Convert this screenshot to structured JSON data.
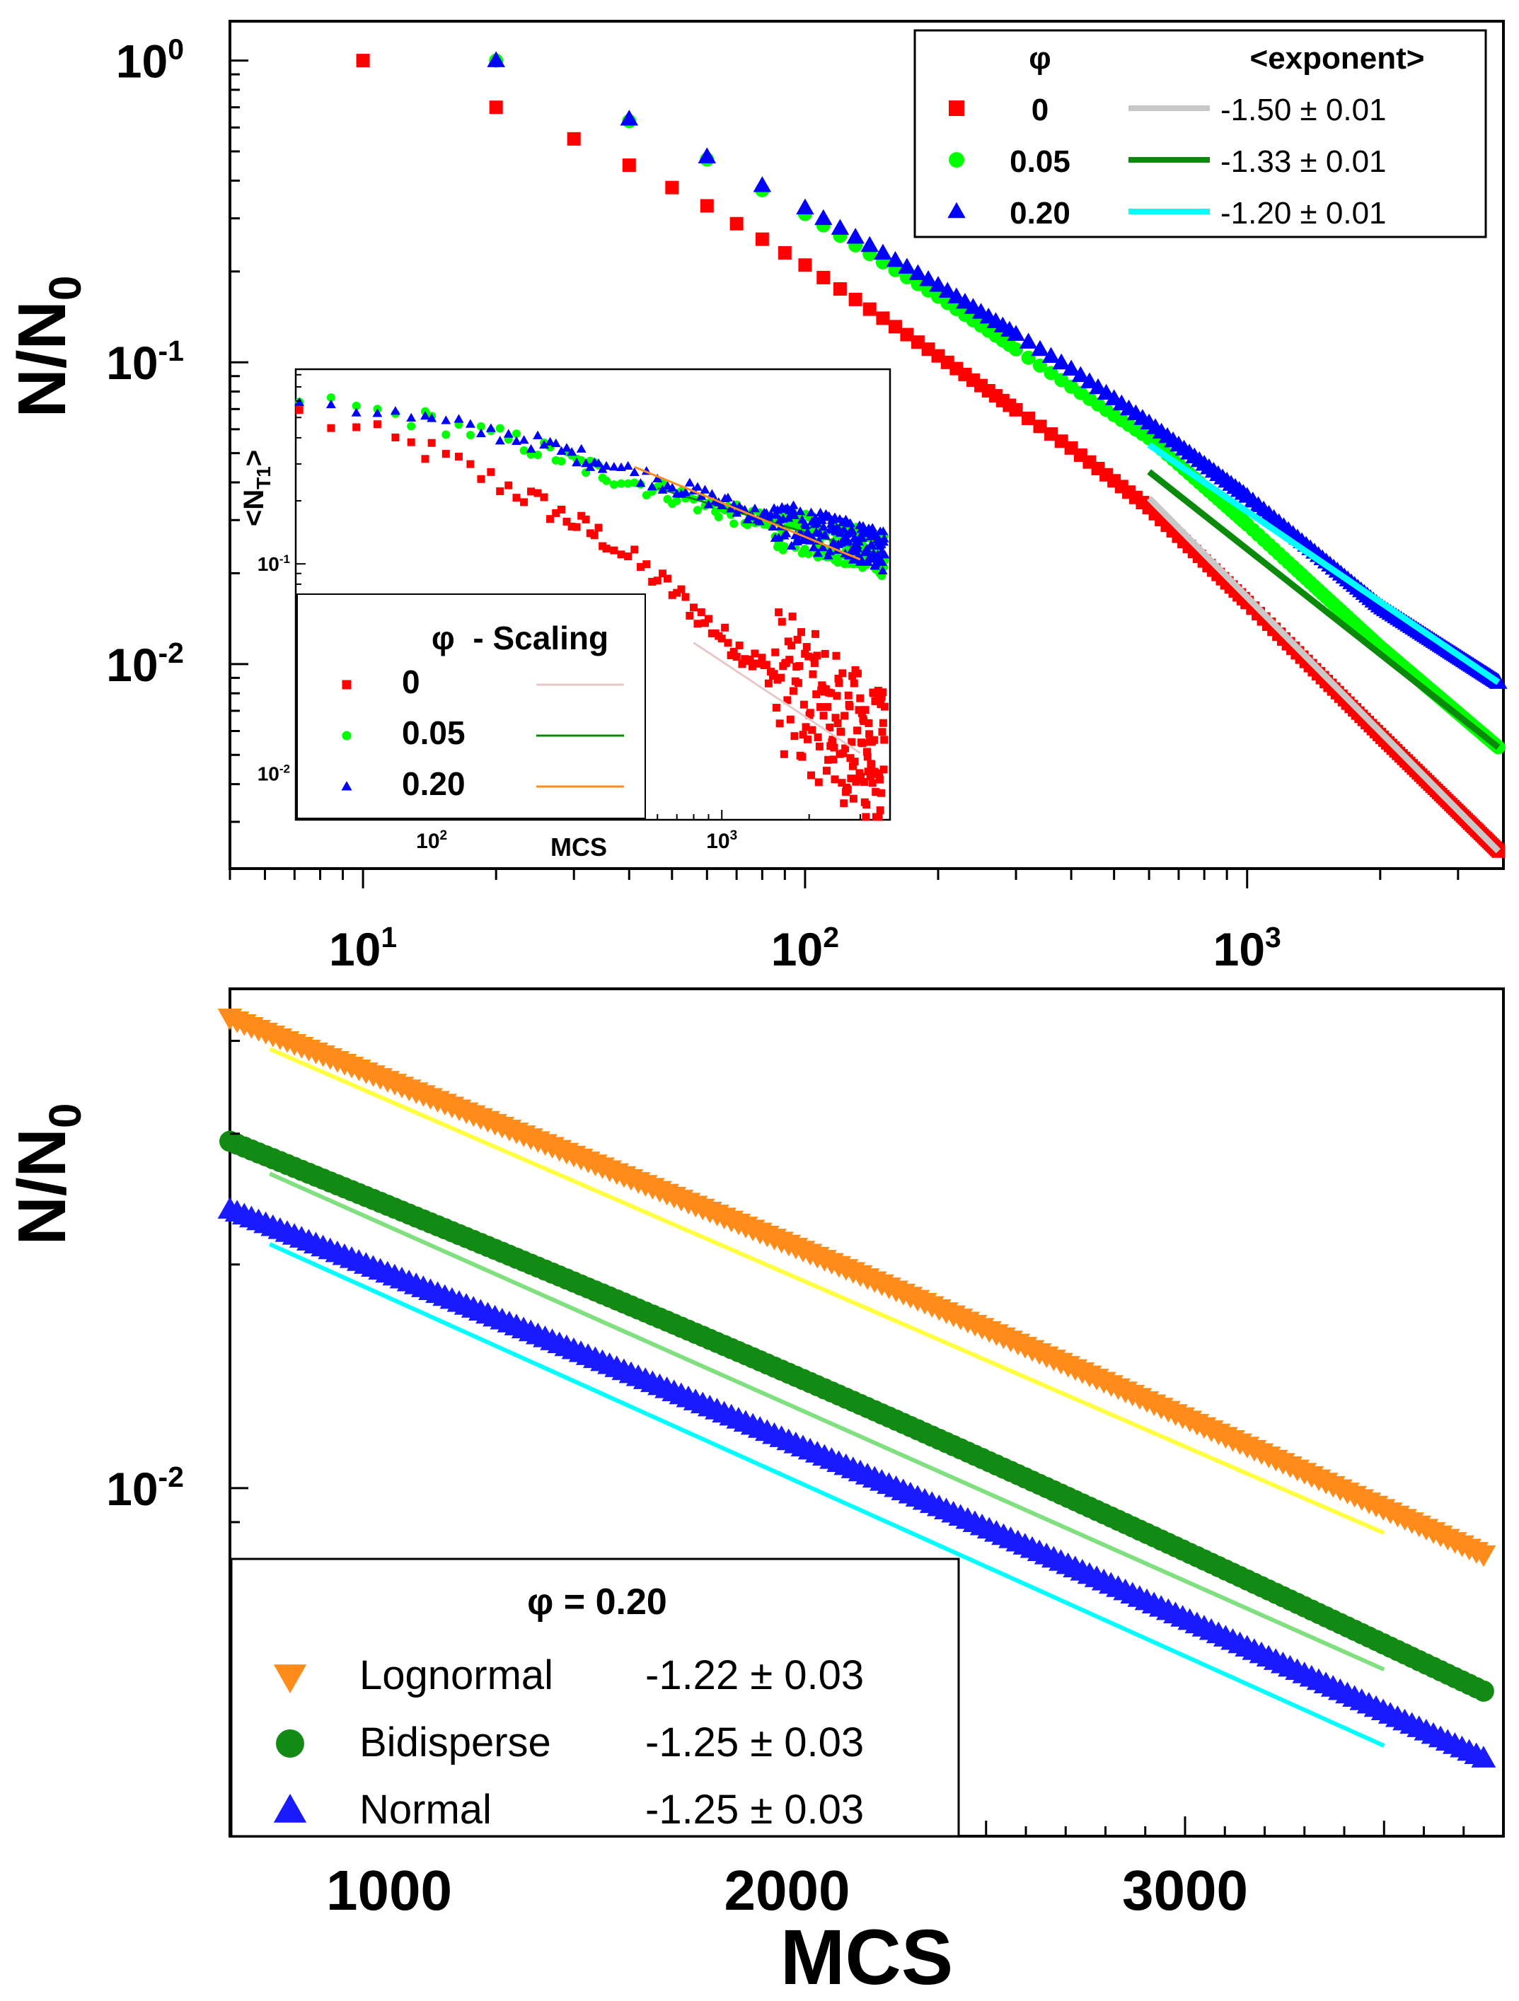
{
  "chart_data": [
    {
      "panel": "top-main",
      "type": "scatter",
      "scale": {
        "x": "log",
        "y": "log"
      },
      "ylabel": "N/N",
      "ylabel_sub": "0",
      "xlim": [
        5,
        3800
      ],
      "ylim": [
        0.0021,
        1.35
      ],
      "y_ticks": [
        {
          "value": 1,
          "base": "10",
          "exp": "0"
        },
        {
          "value": 0.1,
          "base": "10",
          "exp": "-1"
        },
        {
          "value": 0.01,
          "base": "10",
          "exp": "-2"
        }
      ],
      "x_ticks": [
        {
          "value": 10,
          "base": "10",
          "exp": "1"
        },
        {
          "value": 100,
          "base": "10",
          "exp": "2"
        },
        {
          "value": 1000,
          "base": "10",
          "exp": "3"
        }
      ],
      "legend": {
        "position": "top-right",
        "col1": "φ",
        "col2": "<exponent>",
        "rows": [
          {
            "phi": "0",
            "value": "-1.50 ± 0.01"
          },
          {
            "phi": "0.05",
            "value": "-1.33 ± 0.01"
          },
          {
            "phi": "0.20",
            "value": "-1.20 ± 0.01"
          }
        ]
      },
      "series": [
        {
          "name": "0",
          "marker": "square",
          "color": "#ff0000",
          "anchors": [
            [
              10,
              1.0
            ],
            [
              20,
              0.7
            ],
            [
              30,
              0.55
            ],
            [
              40,
              0.45
            ],
            [
              60,
              0.33
            ],
            [
              100,
              0.21
            ],
            [
              200,
              0.105
            ],
            [
              400,
              0.052
            ],
            [
              600,
              0.033
            ],
            [
              1000,
              0.016
            ],
            [
              2000,
              0.0058
            ],
            [
              3700,
              0.0024
            ]
          ],
          "fit": {
            "x": [
              600,
              3700
            ],
            "y": [
              0.0355,
              0.0024
            ],
            "color": "#c8c8c8"
          }
        },
        {
          "name": "0.05",
          "marker": "circle",
          "color": "#00ff00",
          "anchors": [
            [
              20,
              1.0
            ],
            [
              40,
              0.63
            ],
            [
              60,
              0.47
            ],
            [
              100,
              0.31
            ],
            [
              200,
              0.165
            ],
            [
              400,
              0.083
            ],
            [
              600,
              0.056
            ],
            [
              1000,
              0.029
            ],
            [
              2000,
              0.0114
            ],
            [
              3700,
              0.0053
            ]
          ],
          "fit": {
            "x": [
              600,
              3700
            ],
            "y": [
              0.0434,
              0.0053
            ],
            "color": "#0a8a0a"
          }
        },
        {
          "name": "0.20",
          "marker": "triangle",
          "color": "#0000ff",
          "anchors": [
            [
              20,
              1.0
            ],
            [
              40,
              0.64
            ],
            [
              60,
              0.48
            ],
            [
              100,
              0.325
            ],
            [
              200,
              0.18
            ],
            [
              400,
              0.095
            ],
            [
              600,
              0.063
            ],
            [
              1000,
              0.036
            ],
            [
              2000,
              0.0155
            ],
            [
              3700,
              0.0087
            ]
          ],
          "fit": {
            "x": [
              600,
              3700
            ],
            "y": [
              0.0533,
              0.0087
            ],
            "color": "#00ffff"
          }
        }
      ]
    },
    {
      "panel": "inset",
      "type": "scatter",
      "scale": {
        "x": "log",
        "y": "log"
      },
      "ylabel": "<N",
      "ylabel_sub": "T1",
      "ylabel_end": ">",
      "xlabel": "MCS",
      "xlim": [
        34,
        3800
      ],
      "ylim": [
        0.006,
        0.85
      ],
      "y_ticks": [
        {
          "value": 0.1,
          "base": "10",
          "exp": "-1"
        },
        {
          "value": 0.01,
          "base": "10",
          "exp": "-2"
        }
      ],
      "x_ticks": [
        {
          "value": 100,
          "base": "10",
          "exp": "2"
        },
        {
          "value": 1000,
          "base": "10",
          "exp": "3"
        }
      ],
      "legend": {
        "position": "bottom-left",
        "title": "φ  - Scaling",
        "rows": [
          {
            "phi": "0"
          },
          {
            "phi": "0.05"
          },
          {
            "phi": "0.20"
          }
        ]
      },
      "series": [
        {
          "name": "0",
          "marker": "square",
          "color": "#ff0000",
          "anchors": [
            [
              35,
              0.52
            ],
            [
              100,
              0.34
            ],
            [
              200,
              0.22
            ],
            [
              400,
              0.13
            ],
            [
              700,
              0.072
            ],
            [
              1000,
              0.045
            ],
            [
              2000,
              0.022
            ],
            [
              3600,
              0.011
            ]
          ],
          "fit": {
            "x": [
              800,
              3000
            ],
            "y": [
              0.042,
              0.0125
            ],
            "color": "#e8c8c8"
          }
        },
        {
          "name": "0.05",
          "marker": "circle",
          "color": "#00ff00",
          "anchors": [
            [
              35,
              0.62
            ],
            [
              100,
              0.48
            ],
            [
              200,
              0.38
            ],
            [
              400,
              0.27
            ],
            [
              800,
              0.2
            ],
            [
              1500,
              0.15
            ],
            [
              3000,
              0.12
            ],
            [
              3500,
              0.11
            ]
          ],
          "fit": {
            "x": [
              600,
              3000
            ],
            "y": [
              0.23,
              0.118
            ],
            "color": "#0a8a0a"
          }
        },
        {
          "name": "0.20",
          "marker": "triangle",
          "color": "#0000ff",
          "anchors": [
            [
              35,
              0.62
            ],
            [
              100,
              0.48
            ],
            [
              200,
              0.4
            ],
            [
              400,
              0.3
            ],
            [
              800,
              0.22
            ],
            [
              1500,
              0.16
            ],
            [
              3000,
              0.125
            ],
            [
              3600,
              0.115
            ]
          ],
          "fit": {
            "x": [
              500,
              3000
            ],
            "y": [
              0.29,
              0.105
            ],
            "color": "#ff8c1a"
          }
        }
      ]
    },
    {
      "panel": "bottom",
      "type": "scatter",
      "scale": {
        "x": "linear",
        "y": "log"
      },
      "ylabel": "N/N",
      "ylabel_sub": "0",
      "xlabel": "MCS",
      "xlim": [
        600,
        3800
      ],
      "ylim": [
        0.0034,
        0.047
      ],
      "x_ticks": [
        1000,
        2000,
        3000
      ],
      "y_ticks": [
        {
          "value": 0.01,
          "base": "10",
          "exp": "-2"
        }
      ],
      "legend": {
        "position": "bottom-left",
        "title": "φ = 0.20",
        "rows": [
          {
            "name": "Lognormal",
            "value": "-1.22 ± 0.03"
          },
          {
            "name": "Bidisperse",
            "value": "-1.25 ± 0.03"
          },
          {
            "name": "Normal",
            "value": "-1.25 ± 0.03"
          }
        ]
      },
      "series": [
        {
          "name": "Lognormal",
          "marker": "triangle-down",
          "color": "#ff8c1a",
          "y_start": 0.043,
          "y_end": 0.0081,
          "fit": {
            "x": [
              700,
              3500
            ],
            "y": [
              0.039,
              0.0087
            ],
            "color": "#ffff40"
          }
        },
        {
          "name": "Bidisperse",
          "marker": "circle",
          "color": "#138a13",
          "y_start": 0.0293,
          "y_end": 0.0053,
          "fit": {
            "x": [
              700,
              3500
            ],
            "y": [
              0.0265,
              0.0057
            ],
            "color": "#80e080"
          }
        },
        {
          "name": "Normal",
          "marker": "triangle",
          "color": "#1a1aff",
          "y_start": 0.0237,
          "y_end": 0.0043,
          "fit": {
            "x": [
              700,
              3500
            ],
            "y": [
              0.0213,
              0.0045
            ],
            "color": "#00ffff"
          }
        }
      ]
    }
  ]
}
